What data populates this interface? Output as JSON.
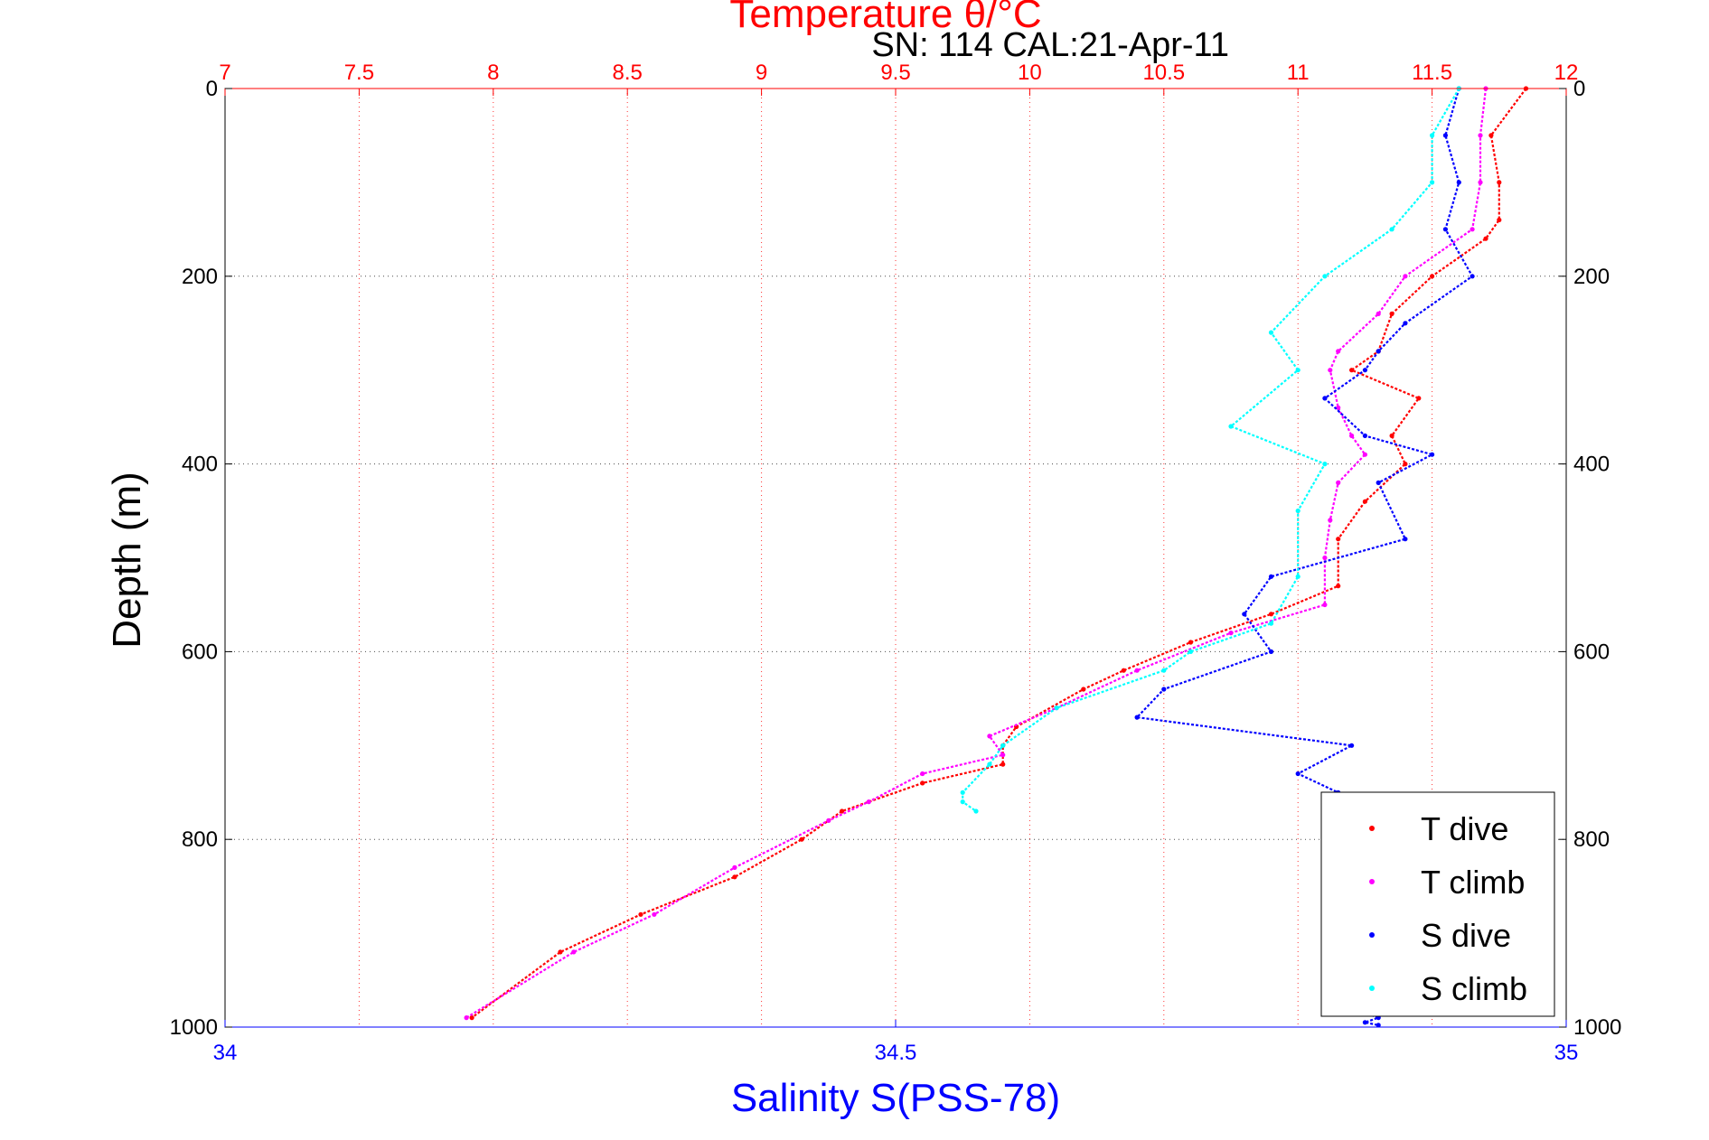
{
  "chart_data": {
    "type": "scatter",
    "title": "Temperature θ/°C",
    "subtitle": "SN: 114  CAL:21-Apr-11",
    "ylabel": "Depth (m)",
    "xlabel_bottom": "Salinity S(PSS-78)",
    "y_reversed": true,
    "ylim": [
      0,
      1000
    ],
    "yticks": [
      0,
      200,
      400,
      600,
      800,
      1000
    ],
    "x_top": {
      "label": "Temperature θ/°C",
      "lim": [
        7,
        12
      ],
      "ticks": [
        "7",
        "7.5",
        "8",
        "8.5",
        "9",
        "9.5",
        "10",
        "10.5",
        "11",
        "11.5",
        "12"
      ],
      "color": "#ff0000"
    },
    "x_bottom": {
      "label": "Salinity S(PSS-78)",
      "lim": [
        34,
        35
      ],
      "ticks": [
        "34",
        "34.5",
        "35"
      ],
      "color": "#0000ff"
    },
    "grid": true,
    "legend_position": "bottom-right",
    "series": [
      {
        "name": "T dive",
        "axis": "temperature",
        "color": "#ff0000",
        "x": [
          11.85,
          11.72,
          11.75,
          11.75,
          11.7,
          11.5,
          11.35,
          11.3,
          11.2,
          11.45,
          11.35,
          11.4,
          11.25,
          11.15,
          11.15,
          10.9,
          10.6,
          10.35,
          10.2,
          9.95,
          9.9,
          9.9,
          9.6,
          9.3,
          9.15,
          8.9,
          8.55,
          8.25,
          7.92
        ],
        "y": [
          0,
          50,
          100,
          140,
          160,
          200,
          240,
          280,
          300,
          330,
          370,
          400,
          440,
          480,
          530,
          560,
          590,
          620,
          640,
          680,
          700,
          720,
          740,
          770,
          800,
          840,
          880,
          920,
          990
        ]
      },
      {
        "name": "T climb",
        "axis": "temperature",
        "color": "#ff00ff",
        "x": [
          11.7,
          11.68,
          11.68,
          11.65,
          11.4,
          11.3,
          11.15,
          11.12,
          11.15,
          11.2,
          11.25,
          11.15,
          11.12,
          11.1,
          11.1,
          10.75,
          10.4,
          10.1,
          9.85,
          9.9,
          9.6,
          9.4,
          9.25,
          8.9,
          8.6,
          8.3,
          7.9
        ],
        "y": [
          0,
          50,
          100,
          150,
          200,
          240,
          280,
          300,
          340,
          370,
          390,
          420,
          460,
          500,
          550,
          580,
          620,
          660,
          690,
          710,
          730,
          760,
          780,
          830,
          880,
          920,
          990
        ]
      },
      {
        "name": "S dive",
        "axis": "salinity",
        "color": "#0000ff",
        "x": [
          34.92,
          34.91,
          34.92,
          34.91,
          34.93,
          34.88,
          34.86,
          34.85,
          34.82,
          34.85,
          34.9,
          34.86,
          34.88,
          34.78,
          34.76,
          34.78,
          34.7,
          34.68,
          34.84,
          34.8,
          34.83,
          34.82,
          34.84,
          34.82,
          34.85,
          34.9,
          34.82,
          34.86,
          34.85,
          34.86
        ],
        "y": [
          0,
          50,
          100,
          150,
          200,
          250,
          280,
          300,
          330,
          370,
          390,
          420,
          480,
          520,
          560,
          600,
          640,
          670,
          700,
          730,
          750,
          780,
          820,
          860,
          900,
          940,
          970,
          990,
          995,
          998
        ]
      },
      {
        "name": "S climb",
        "axis": "salinity",
        "color": "#00ffff",
        "x": [
          34.92,
          34.9,
          34.9,
          34.87,
          34.82,
          34.78,
          34.8,
          34.75,
          34.82,
          34.8,
          34.8,
          34.78,
          34.72,
          34.7,
          34.62,
          34.58,
          34.57,
          34.55,
          34.55,
          34.56
        ],
        "y": [
          0,
          50,
          100,
          150,
          200,
          260,
          300,
          360,
          400,
          450,
          520,
          570,
          600,
          620,
          660,
          700,
          720,
          750,
          760,
          770
        ]
      }
    ]
  }
}
